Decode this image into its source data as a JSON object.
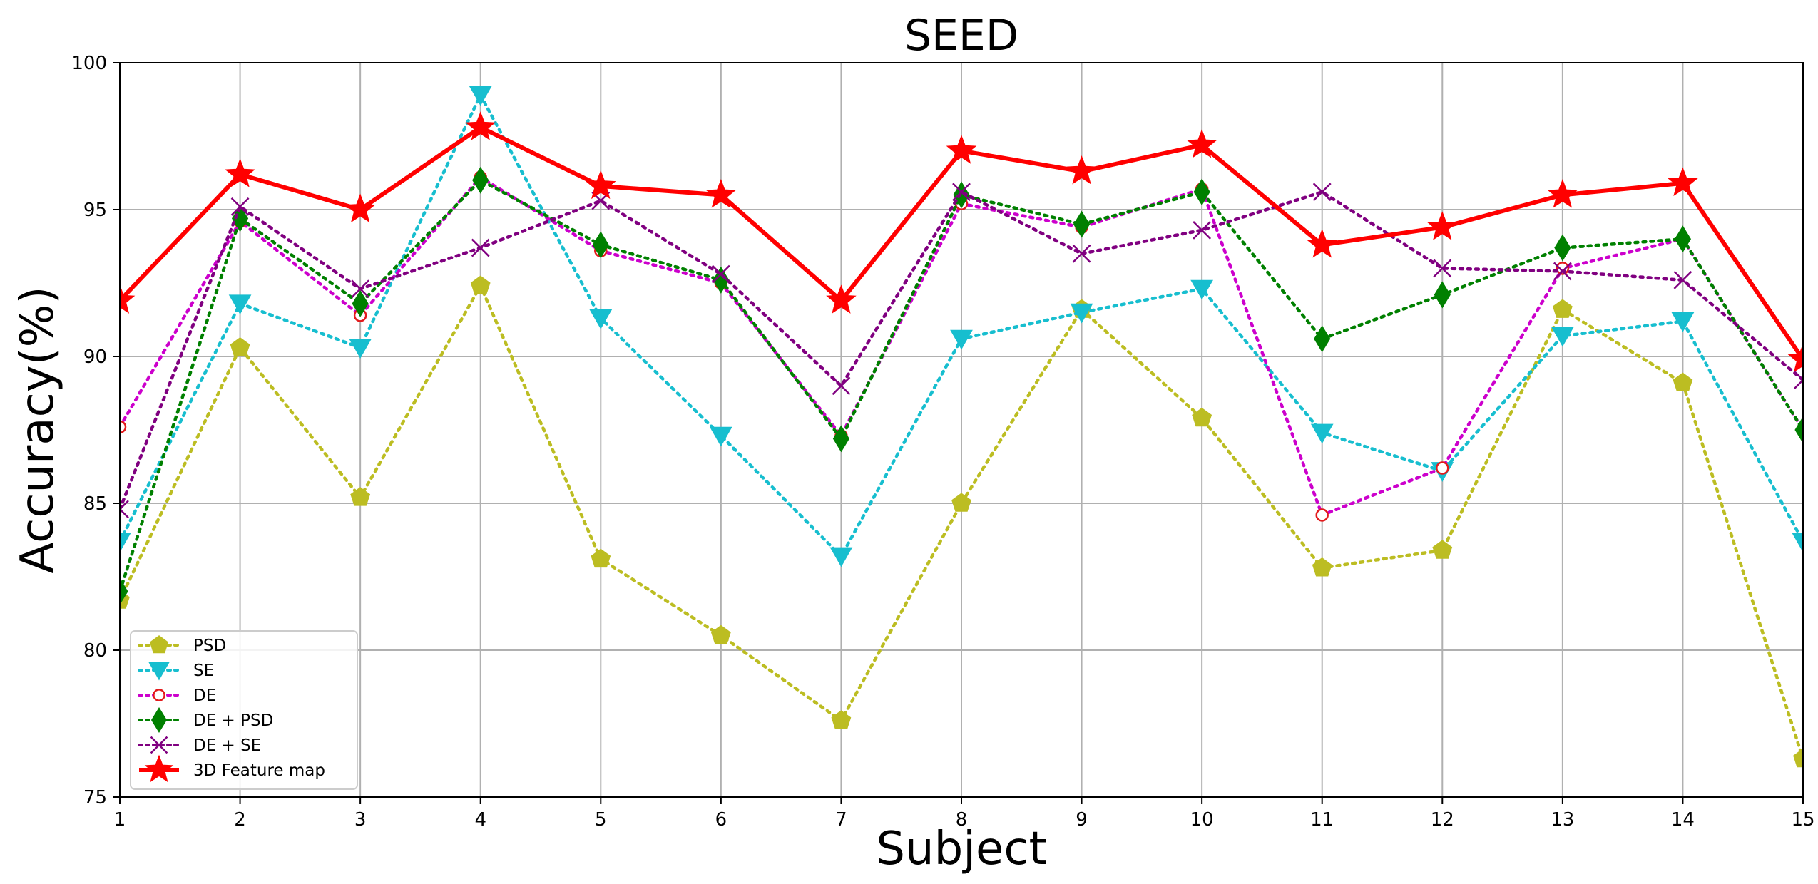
{
  "chart_data": {
    "type": "line",
    "title": "SEED",
    "xlabel": "Subject",
    "ylabel": "Accuracy(%)",
    "x": [
      1,
      2,
      3,
      4,
      5,
      6,
      7,
      8,
      9,
      10,
      11,
      12,
      13,
      14,
      15
    ],
    "xlim": [
      1,
      15
    ],
    "ylim": [
      75,
      100
    ],
    "yticks": [
      75,
      80,
      85,
      90,
      95,
      100
    ],
    "grid": true,
    "legend_position": "lower-left",
    "series": [
      {
        "name": "PSD",
        "color": "#bcbd22",
        "marker": "pentagon",
        "style": "dotted",
        "values": [
          81.7,
          90.3,
          85.2,
          92.4,
          83.1,
          80.5,
          77.6,
          85.0,
          91.6,
          87.9,
          82.8,
          83.4,
          91.6,
          89.1,
          76.3
        ]
      },
      {
        "name": "SE",
        "color": "#17becf",
        "marker": "triangle-down",
        "style": "dotted",
        "values": [
          83.7,
          91.8,
          90.3,
          98.9,
          91.3,
          87.3,
          83.2,
          90.6,
          91.5,
          92.3,
          87.4,
          86.1,
          90.7,
          91.2,
          83.7
        ]
      },
      {
        "name": "DE",
        "color": "#cc00cc",
        "marker": "circle-open",
        "marker_color": "#e31a1c",
        "style": "dotted",
        "values": [
          87.6,
          94.6,
          91.4,
          96.1,
          93.6,
          92.5,
          87.3,
          95.2,
          94.4,
          95.7,
          84.6,
          86.2,
          93.0,
          94.0,
          87.5
        ]
      },
      {
        "name": "DE + PSD",
        "color": "#008000",
        "marker": "diamond",
        "style": "dotted",
        "values": [
          82.0,
          94.7,
          91.8,
          96.0,
          93.8,
          92.6,
          87.2,
          95.5,
          94.5,
          95.6,
          90.6,
          92.1,
          93.7,
          94.0,
          87.5
        ]
      },
      {
        "name": "DE + SE",
        "color": "#800080",
        "marker": "x",
        "style": "dotted",
        "values": [
          84.8,
          95.1,
          92.3,
          93.7,
          95.3,
          92.8,
          89.0,
          95.6,
          93.5,
          94.3,
          95.6,
          93.0,
          92.9,
          92.6,
          89.2
        ]
      },
      {
        "name": "3D Feature map",
        "color": "#ff0000",
        "marker": "star",
        "style": "solid",
        "values": [
          91.9,
          96.2,
          95.0,
          97.8,
          95.8,
          95.5,
          91.9,
          97.0,
          96.3,
          97.2,
          93.8,
          94.4,
          95.5,
          95.9,
          89.9
        ]
      }
    ]
  }
}
